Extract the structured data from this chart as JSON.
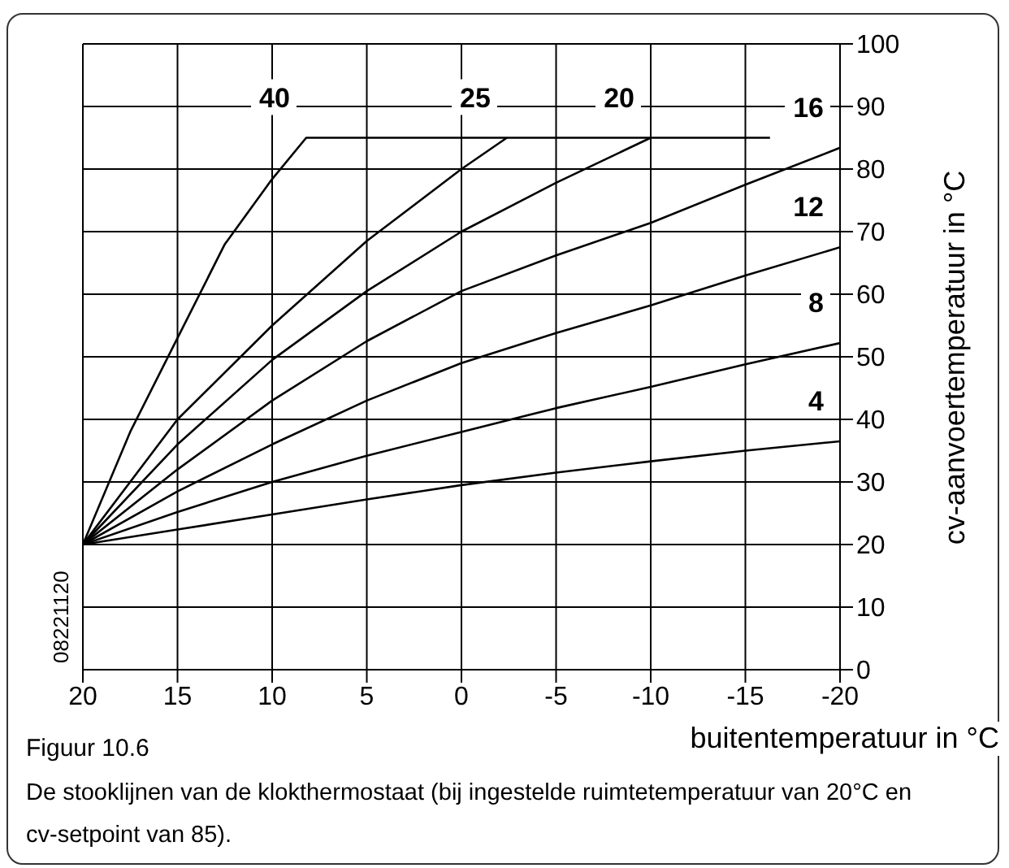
{
  "chart_data": {
    "type": "line",
    "xlabel": "buitentemperatuur in °C",
    "ylabel": "cv-aanvoertemperatuur in °C",
    "xlim": [
      20,
      -20
    ],
    "xticks": [
      20,
      15,
      10,
      5,
      0,
      -5,
      -10,
      -15,
      -20
    ],
    "ylim": [
      0,
      100
    ],
    "yticks": [
      0,
      10,
      20,
      30,
      40,
      50,
      60,
      70,
      80,
      90,
      100
    ],
    "grid": true,
    "legend": false,
    "marker": "none",
    "line_style": "solid",
    "series": [
      {
        "name": "40",
        "color": "#000000",
        "x": [
          20,
          17.5,
          15,
          12.5,
          10,
          8.2,
          -16.3
        ],
        "values": [
          20,
          38,
          53,
          68,
          78.4,
          85,
          85
        ]
      },
      {
        "name": "25",
        "color": "#000000",
        "x": [
          20,
          15,
          10,
          5,
          0,
          -2.4
        ],
        "values": [
          20,
          40,
          55,
          68.5,
          80,
          85
        ]
      },
      {
        "name": "20",
        "color": "#000000",
        "x": [
          20,
          15,
          10,
          5,
          0,
          -5,
          -10
        ],
        "values": [
          20,
          36,
          49.5,
          60.5,
          70,
          77.8,
          85
        ]
      },
      {
        "name": "16",
        "color": "#000000",
        "x": [
          20,
          15,
          10,
          5,
          0,
          -5,
          -10,
          -15,
          -20
        ],
        "values": [
          20,
          32,
          43,
          52.5,
          60.5,
          66.2,
          71.4,
          77.5,
          83.4
        ]
      },
      {
        "name": "12",
        "color": "#000000",
        "x": [
          20,
          15,
          10,
          5,
          0,
          -5,
          -10,
          -15,
          -20
        ],
        "values": [
          20,
          28.5,
          36,
          43,
          49,
          53.8,
          58.2,
          63,
          67.5
        ]
      },
      {
        "name": "8",
        "color": "#000000",
        "x": [
          20,
          15,
          10,
          5,
          0,
          -5,
          -10,
          -15,
          -20
        ],
        "values": [
          20,
          25.2,
          30,
          34.2,
          38,
          41.8,
          45.2,
          48.8,
          52.2
        ]
      },
      {
        "name": "4",
        "color": "#000000",
        "x": [
          20,
          15,
          10,
          5,
          0,
          -5,
          -10,
          -15,
          -20
        ],
        "values": [
          20,
          22.4,
          24.8,
          27.2,
          29.5,
          31.5,
          33.3,
          35,
          36.5
        ]
      }
    ],
    "annotations": [
      "08221120",
      "Figuur 10.6",
      "De stooklijnen van de klokthermostaat (bij ingestelde ruimtetemperatuur van 20°C en cv-setpoint van 85)."
    ]
  }
}
